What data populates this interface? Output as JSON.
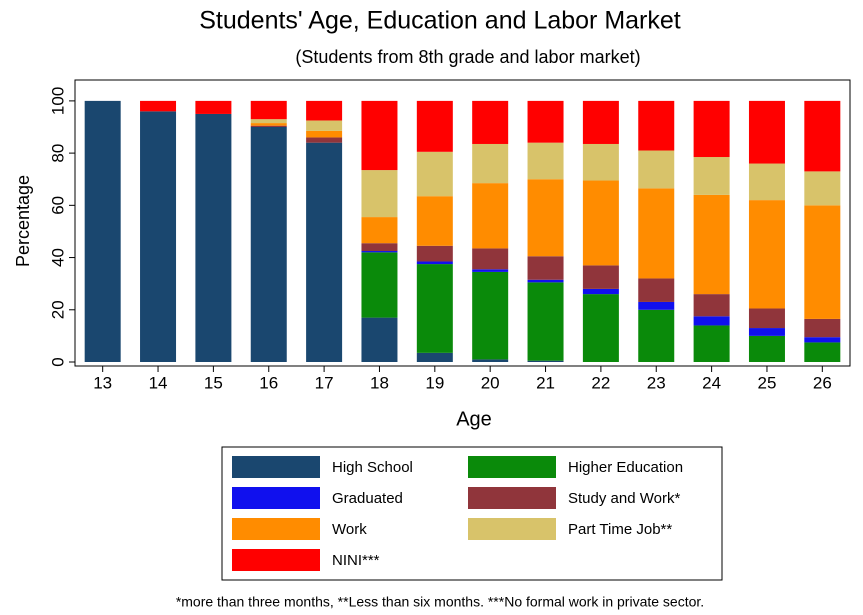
{
  "chart_data": {
    "type": "stacked-bar",
    "title": "Students' Age, Education and Labor Market",
    "subtitle": "(Students from 8th grade and labor market)",
    "x_label": "Age",
    "y_label": "Percentage",
    "footnote": "*more than three months, **Less than six months. ***No formal work in private sector.",
    "categories": [
      "13",
      "14",
      "15",
      "16",
      "17",
      "18",
      "19",
      "20",
      "21",
      "22",
      "23",
      "24",
      "25",
      "26"
    ],
    "ylim": [
      0,
      108
    ],
    "yticks": [
      0,
      20,
      40,
      60,
      80,
      100
    ],
    "series": [
      {
        "name": "High School",
        "color": "#1a476f",
        "values": [
          100,
          96,
          95,
          90,
          84,
          17,
          3.5,
          1,
          0.5,
          0,
          0,
          0,
          0,
          0
        ]
      },
      {
        "name": "Higher Education",
        "color": "#0a8a0a",
        "values": [
          0,
          0,
          0,
          0,
          0,
          25,
          34,
          33.5,
          30,
          26,
          20,
          14,
          10,
          7.5
        ]
      },
      {
        "name": "Graduated",
        "color": "#1010ee",
        "values": [
          0,
          0,
          0,
          0,
          0,
          0.5,
          1,
          1,
          1,
          2,
          3,
          3.5,
          3,
          2
        ]
      },
      {
        "name": "Study and Work*",
        "color": "#90353b",
        "values": [
          0,
          0,
          0,
          0.5,
          2,
          3,
          6,
          8,
          9,
          9,
          9,
          8.5,
          7.5,
          7
        ]
      },
      {
        "name": "Work",
        "color": "#ff8c00",
        "values": [
          0,
          0,
          0,
          1,
          2.5,
          10,
          19,
          25,
          29.5,
          32.5,
          34.5,
          38,
          41.5,
          43.5
        ]
      },
      {
        "name": "Part Time Job**",
        "color": "#d8c36a",
        "values": [
          0,
          0,
          0,
          1.5,
          4,
          18,
          17,
          15,
          14,
          14,
          14.5,
          14.5,
          14,
          13
        ]
      },
      {
        "name": "NINI***",
        "color": "#ff0000",
        "values": [
          0,
          4,
          5,
          7,
          7.5,
          26.5,
          19.5,
          16.5,
          16,
          16.5,
          19,
          21.5,
          24,
          27
        ]
      }
    ]
  }
}
